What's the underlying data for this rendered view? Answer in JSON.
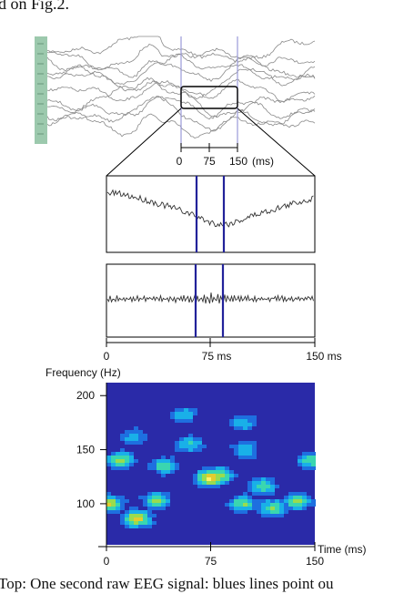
{
  "header_fragment": "d on Fig.2.",
  "caption_fragment": "Top: One second raw EEG signal: blues lines point ou",
  "colors": {
    "marker": "#22229a",
    "marker_light": "#9a9ad8",
    "trace": "#333333",
    "eeg_trace": "#8a8a8a",
    "channel_bar": "#9cc9ad",
    "spectrogram_bg": "#2a2aa8"
  },
  "eeg_scale": {
    "ticks": [
      "0",
      "75",
      "150"
    ],
    "unit": "(ms)"
  },
  "time_axis": {
    "ticks": [
      "0",
      "75 ms",
      "150 ms"
    ]
  },
  "chart_data": {
    "type": "heatmap",
    "title": "",
    "xlabel": "Time (ms)",
    "ylabel": "Frequency (Hz)",
    "x_ticks": [
      "0",
      "75",
      "150"
    ],
    "y_ticks": [
      "200",
      "150",
      "100"
    ],
    "xlim": [
      0,
      150
    ],
    "ylim": [
      62,
      212
    ],
    "colormap": [
      "#2a2aa8",
      "#1e6fe0",
      "#19b0e8",
      "#3ad6b0",
      "#9adc4e",
      "#e2cc30",
      "#fff26a"
    ],
    "hotspots": [
      {
        "t": 75,
        "f": 124,
        "power": 1.0
      },
      {
        "t": 82,
        "f": 126,
        "power": 0.7
      },
      {
        "t": 10,
        "f": 140,
        "power": 0.7
      },
      {
        "t": 2,
        "f": 100,
        "power": 0.75
      },
      {
        "t": 22,
        "f": 86,
        "power": 0.85
      },
      {
        "t": 36,
        "f": 103,
        "power": 0.6
      },
      {
        "t": 42,
        "f": 135,
        "power": 0.55
      },
      {
        "t": 98,
        "f": 100,
        "power": 0.6
      },
      {
        "t": 112,
        "f": 116,
        "power": 0.55
      },
      {
        "t": 120,
        "f": 96,
        "power": 0.6
      },
      {
        "t": 138,
        "f": 102,
        "power": 0.65
      },
      {
        "t": 148,
        "f": 140,
        "power": 0.6
      },
      {
        "t": 60,
        "f": 155,
        "power": 0.45
      },
      {
        "t": 100,
        "f": 150,
        "power": 0.45
      },
      {
        "t": 55,
        "f": 182,
        "power": 0.4
      },
      {
        "t": 98,
        "f": 175,
        "power": 0.4
      },
      {
        "t": 20,
        "f": 162,
        "power": 0.35
      }
    ]
  }
}
